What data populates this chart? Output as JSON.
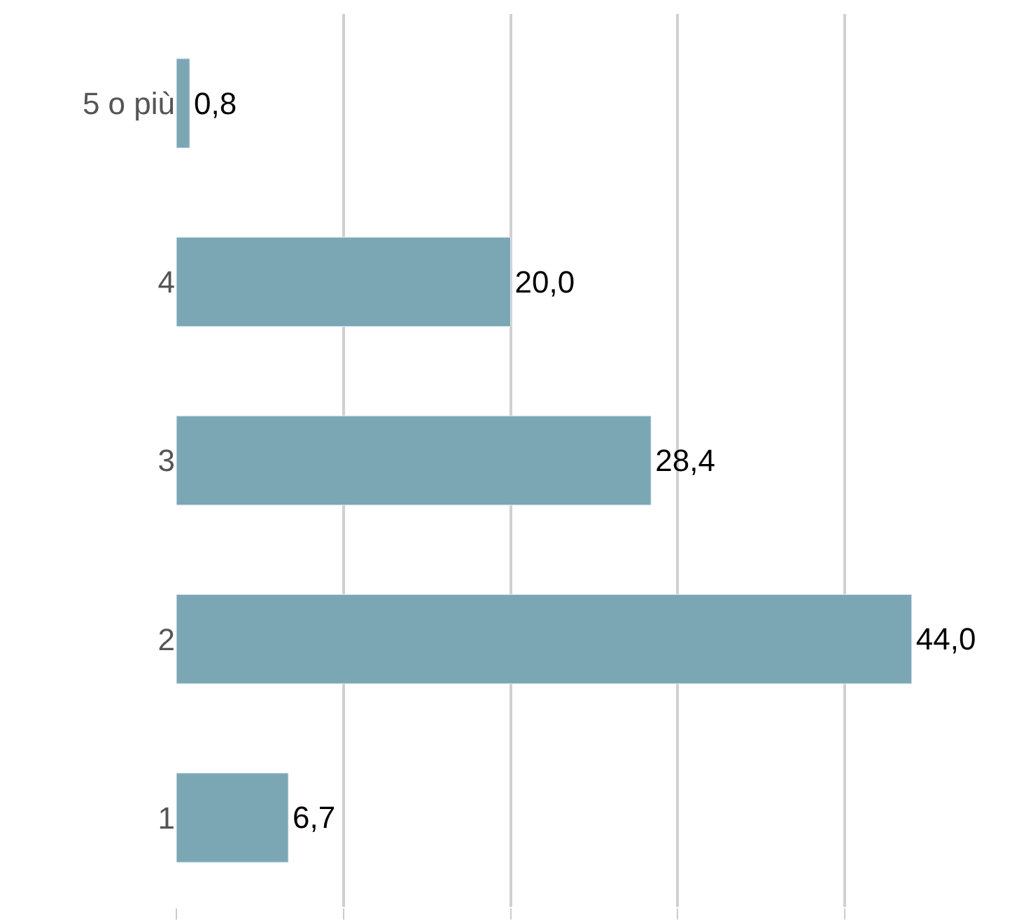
{
  "chart_data": {
    "type": "bar",
    "orientation": "horizontal",
    "categories": [
      "5 o più",
      "4",
      "3",
      "2",
      "1"
    ],
    "values": [
      0.8,
      20.0,
      28.4,
      44.0,
      6.7
    ],
    "value_labels": [
      "0,8",
      "20,0",
      "28,4",
      "44,0",
      "6,7"
    ],
    "color": "#7ba7b5",
    "xlim": [
      0,
      50
    ],
    "xticks": [
      {
        "value": 0,
        "label": null
      },
      {
        "value": 10,
        "label": null
      },
      {
        "value": 20,
        "label": null
      },
      {
        "value": 30,
        "label": null
      },
      {
        "value": 40,
        "label": null
      }
    ],
    "grid": "x",
    "tick_labels": "y",
    "legend": false
  }
}
